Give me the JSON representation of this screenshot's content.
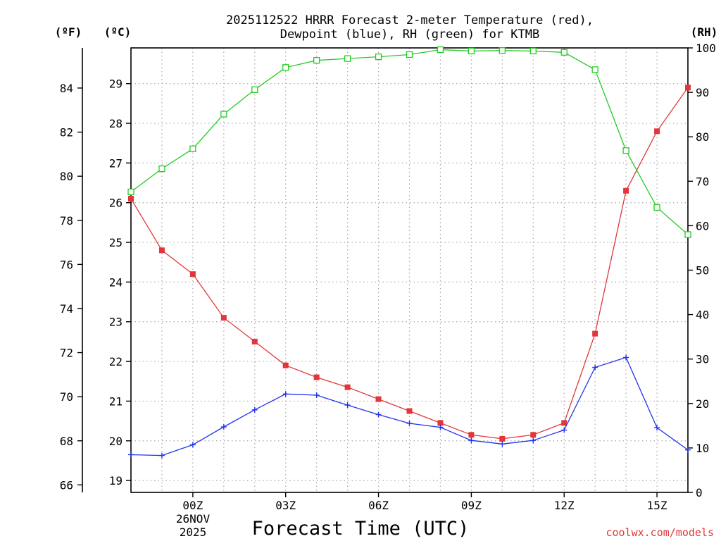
{
  "chart_data": {
    "type": "line",
    "title_lines": [
      "2025112522 HRRR Forecast 2-meter Temperature (red),",
      "Dewpoint (blue), RH (green) for KTMB"
    ],
    "xlabel": "Forecast Time (UTC)",
    "credit": "coolwx.com/models",
    "units": {
      "left_f": "(ºF)",
      "left_c": "(ºC)",
      "right_rh": "(RH)"
    },
    "x_ticks": [
      {
        "hour": 2,
        "label": "00Z"
      },
      {
        "hour": 5,
        "label": "03Z"
      },
      {
        "hour": 8,
        "label": "06Z"
      },
      {
        "hour": 11,
        "label": "09Z"
      },
      {
        "hour": 14,
        "label": "12Z"
      },
      {
        "hour": 17,
        "label": "15Z"
      }
    ],
    "date_label": [
      "26NOV",
      "2025"
    ],
    "xlim": [
      0,
      18
    ],
    "celsius_axis": {
      "ylim": [
        18.7,
        29.9
      ],
      "ticks": [
        19,
        20,
        21,
        22,
        23,
        24,
        25,
        26,
        27,
        28,
        29
      ]
    },
    "fahrenheit_axis": {
      "ticks": [
        66,
        68,
        70,
        72,
        74,
        76,
        78,
        80,
        82,
        84
      ]
    },
    "rh_axis": {
      "ylim": [
        0,
        100
      ],
      "ticks": [
        0,
        10,
        20,
        30,
        40,
        50,
        60,
        70,
        80,
        90,
        100
      ]
    },
    "x": [
      0,
      1,
      2,
      3,
      4,
      5,
      6,
      7,
      8,
      9,
      10,
      11,
      12,
      13,
      14,
      15,
      16,
      17,
      18
    ],
    "series": [
      {
        "name": "Temperature",
        "axis": "celsius",
        "color": "#e2373a",
        "marker": "filled-square",
        "values": [
          26.1,
          24.8,
          24.2,
          23.1,
          22.5,
          21.9,
          21.6,
          21.35,
          21.05,
          20.75,
          20.45,
          20.15,
          20.05,
          20.15,
          20.45,
          22.7,
          26.3,
          27.8,
          28.9
        ]
      },
      {
        "name": "Dewpoint",
        "axis": "celsius",
        "color": "#2233ee",
        "marker": "plus",
        "values": [
          19.65,
          19.63,
          19.9,
          20.35,
          20.78,
          21.18,
          21.15,
          20.9,
          20.66,
          20.44,
          20.34,
          20.01,
          19.92,
          20.01,
          20.27,
          21.85,
          22.1,
          20.33,
          19.77
        ]
      },
      {
        "name": "RH",
        "axis": "rh",
        "color": "#22cc22",
        "marker": "open-square",
        "values": [
          67.6,
          72.8,
          77.3,
          85.1,
          90.6,
          95.6,
          97.2,
          97.6,
          98.0,
          98.5,
          99.6,
          99.3,
          99.4,
          99.3,
          99.0,
          95.1,
          76.9,
          64.1,
          58.0
        ]
      }
    ]
  }
}
